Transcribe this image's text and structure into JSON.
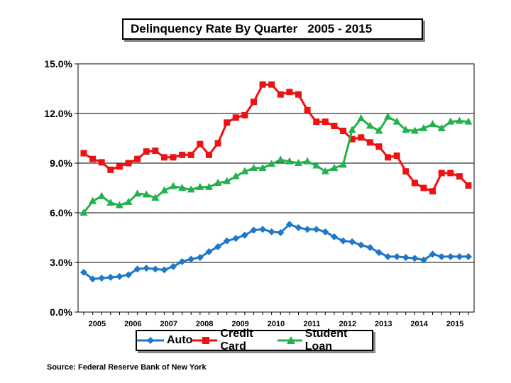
{
  "title": "Delinquency Rate By Quarter   2005 - 2015",
  "source": "Source:  Federal Reserve Bank of New York",
  "chart_data": {
    "type": "line",
    "title": "Delinquency Rate By Quarter   2005 - 2015",
    "xlabel": "",
    "ylabel": "",
    "ylim": [
      0,
      15
    ],
    "y_ticks": [
      "0.0%",
      "3.0%",
      "6.0%",
      "9.0%",
      "12.0%",
      "15.0%"
    ],
    "y_tick_values": [
      0,
      3,
      6,
      9,
      12,
      15
    ],
    "x_tick_labels": [
      "2005",
      "2006",
      "2007",
      "2008",
      "2009",
      "2010",
      "2011",
      "2012",
      "2013",
      "2014",
      "2015"
    ],
    "x_start_year": 2005,
    "x_quarter_offset": 0,
    "grid": true,
    "legend_position": "bottom",
    "series": [
      {
        "name": "Auto",
        "color": "#1f77c9",
        "marker": "diamond",
        "values": [
          2.4,
          2.0,
          2.05,
          2.1,
          2.15,
          2.25,
          2.6,
          2.65,
          2.6,
          2.55,
          2.75,
          3.05,
          3.2,
          3.3,
          3.65,
          3.95,
          4.3,
          4.45,
          4.65,
          4.95,
          5.0,
          4.85,
          4.8,
          5.3,
          5.1,
          5.0,
          5.0,
          4.85,
          4.55,
          4.3,
          4.25,
          4.05,
          3.9,
          3.6,
          3.35,
          3.35,
          3.3,
          3.25,
          3.15,
          3.5,
          3.35,
          3.35,
          3.35,
          3.35
        ]
      },
      {
        "name": "Credit Card",
        "color": "#ee1111",
        "marker": "square",
        "values": [
          9.6,
          9.25,
          9.05,
          8.6,
          8.8,
          9.0,
          9.25,
          9.7,
          9.75,
          9.35,
          9.35,
          9.5,
          9.5,
          10.15,
          9.5,
          10.2,
          11.45,
          11.75,
          11.9,
          12.7,
          13.75,
          13.75,
          13.15,
          13.3,
          13.15,
          12.2,
          11.5,
          11.5,
          11.25,
          10.95,
          10.45,
          10.55,
          10.25,
          10.0,
          9.35,
          9.45,
          8.5,
          7.8,
          7.5,
          7.3,
          8.4,
          8.4,
          8.2,
          7.65
        ]
      },
      {
        "name": "Student Loan",
        "color": "#22b14c",
        "marker": "triangle",
        "values": [
          6.0,
          6.7,
          7.0,
          6.6,
          6.45,
          6.65,
          7.15,
          7.1,
          6.9,
          7.35,
          7.6,
          7.5,
          7.4,
          7.55,
          7.55,
          7.8,
          7.9,
          8.2,
          8.5,
          8.7,
          8.7,
          8.95,
          9.2,
          9.1,
          9.0,
          9.1,
          8.85,
          8.5,
          8.7,
          8.9,
          11.0,
          11.7,
          11.25,
          10.95,
          11.8,
          11.5,
          11.0,
          10.95,
          11.1,
          11.35,
          11.1,
          11.5,
          11.55,
          11.5
        ]
      }
    ]
  }
}
